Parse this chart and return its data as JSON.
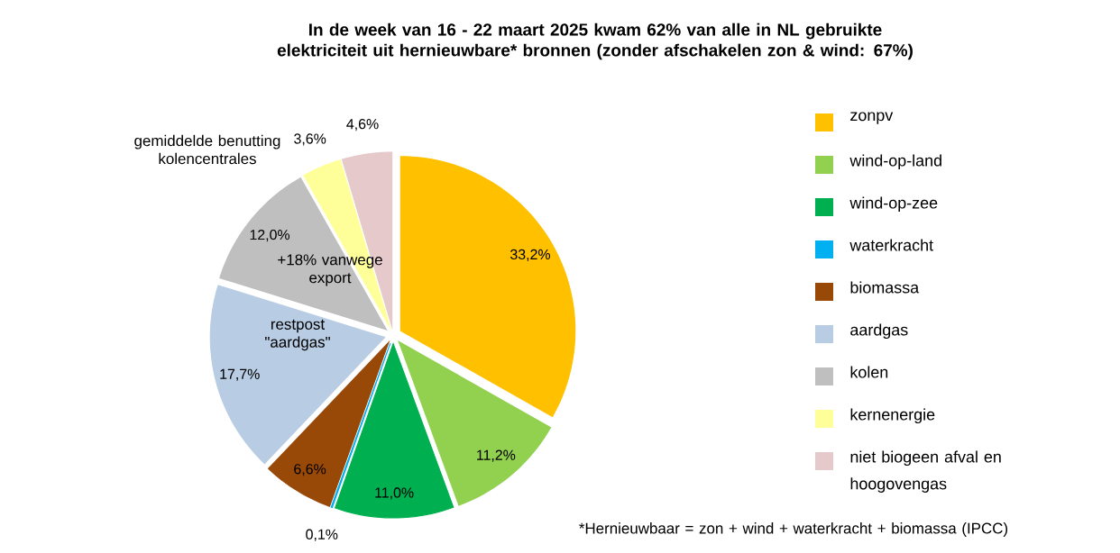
{
  "chart_data": {
    "type": "pie",
    "title": "In de week van 16 - 22 maart 2025 kwam 62% van alle in NL gebruikte elektriciteit uit hernieuwbare* bronnen  (zonder afschakelen zon & wind: 67%)",
    "categories": [
      "zonpv",
      "wind-op-land",
      "wind-op-zee",
      "waterkracht",
      "biomassa",
      "aardgas",
      "kolen",
      "kernenergie",
      "niet biogeen afval en hoogovengas"
    ],
    "values": [
      33.2,
      11.2,
      11.0,
      0.1,
      6.6,
      17.7,
      12.0,
      3.6,
      4.6
    ],
    "value_labels": [
      "33,2%",
      "11,2%",
      "11,0%",
      "0,1%",
      "6,6%",
      "17,7%",
      "12,0%",
      "3,6%",
      "4,6%"
    ],
    "colors": [
      "#ffc000",
      "#92d050",
      "#00b050",
      "#00b0f0",
      "#984807",
      "#b8cce4",
      "#bfbfbf",
      "#ffff99",
      "#e6c9cb"
    ],
    "legend": "right",
    "annotations": [
      "gemiddelde benutting kolencentrales",
      "+18% vanwege export",
      "restpost \"aardgas\"",
      "*Hernieuwbaar = zon + wind + waterkracht + biomassa (IPCC)"
    ]
  }
}
